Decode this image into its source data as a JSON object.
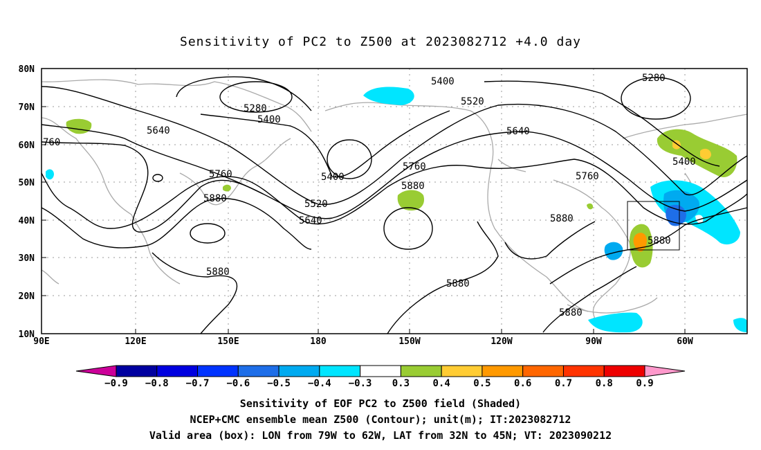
{
  "title": "Sensitivity of PC2 to Z500 at 2023082712 +4.0 day",
  "lat_labels": [
    "80N",
    "70N",
    "60N",
    "50N",
    "40N",
    "30N",
    "20N",
    "10N"
  ],
  "lon_labels": [
    "90E",
    "120E",
    "150E",
    "180",
    "150W",
    "120W",
    "90W",
    "60W"
  ],
  "contour_labels": {
    "c5280a": "5280",
    "c5280b": "5280",
    "c5400a": "5400",
    "c5400b": "5400",
    "c5400c": "5400",
    "c5400d": "5400",
    "c5520a": "5520",
    "c5520b": "5520",
    "c5640a": "5640",
    "c5640b": "5640",
    "c5640c": "5640",
    "c760": "760",
    "c5760a": "5760",
    "c5760b": "5760",
    "c5760c": "5760",
    "c5880a": "5880",
    "c5880b": "5880",
    "c5880c": "5880",
    "c5880d": "5880",
    "c5880e": "5880",
    "c5880f": "5880",
    "c5880g": "5880"
  },
  "colorbar": {
    "labels": [
      "−0.9",
      "−0.8",
      "−0.7",
      "−0.6",
      "−0.5",
      "−0.4",
      "−0.3",
      "0.3",
      "0.4",
      "0.5",
      "0.6",
      "0.7",
      "0.8",
      "0.9"
    ],
    "colors": [
      "#0000a0",
      "#0000e0",
      "#0033ff",
      "#1e6ee8",
      "#00aaf0",
      "#00e5ff",
      "#ffffff",
      "#99cc33",
      "#ffcc33",
      "#ff9900",
      "#ff6600",
      "#ff3300",
      "#ee0000"
    ],
    "low_arrow_color": "#cc0099",
    "high_arrow_color": "#ff99cc"
  },
  "footer": {
    "line1": "Sensitivity of EOF PC2 to Z500 field (Shaded)",
    "line2": "NCEP+CMC ensemble mean Z500 (Contour); unit(m); IT:2023082712",
    "line3": "Valid area (box): LON from 79W to 62W, LAT from 32N to 45N; VT: 2023090212"
  }
}
